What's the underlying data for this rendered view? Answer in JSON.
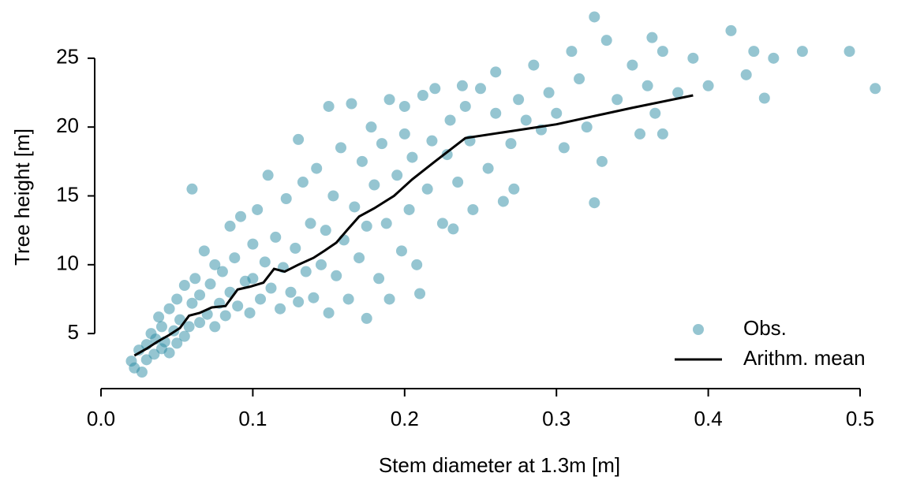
{
  "chart_data": {
    "type": "scatter",
    "xlabel": "Stem diameter at 1.3m [m]",
    "ylabel": "Tree height [m]",
    "xlim": [
      0,
      0.5
    ],
    "ylim": [
      1,
      29
    ],
    "xticks": [
      {
        "value": 0,
        "label": "0.0"
      },
      0.1,
      0.2,
      0.3,
      0.4,
      0.5
    ],
    "yticks": [
      5,
      10,
      15,
      20,
      25
    ],
    "legend": "lower right",
    "series": [
      {
        "name": "Obs.",
        "type": "scatter",
        "color": "#2b8ba3",
        "x": [
          0.02,
          0.022,
          0.025,
          0.027,
          0.03,
          0.03,
          0.033,
          0.035,
          0.036,
          0.038,
          0.04,
          0.04,
          0.042,
          0.045,
          0.045,
          0.048,
          0.05,
          0.05,
          0.052,
          0.055,
          0.055,
          0.058,
          0.06,
          0.06,
          0.062,
          0.065,
          0.065,
          0.068,
          0.07,
          0.072,
          0.075,
          0.075,
          0.078,
          0.08,
          0.082,
          0.085,
          0.085,
          0.088,
          0.09,
          0.092,
          0.095,
          0.098,
          0.1,
          0.1,
          0.103,
          0.105,
          0.108,
          0.11,
          0.112,
          0.115,
          0.118,
          0.12,
          0.122,
          0.125,
          0.128,
          0.13,
          0.13,
          0.133,
          0.135,
          0.138,
          0.14,
          0.142,
          0.145,
          0.148,
          0.15,
          0.15,
          0.153,
          0.155,
          0.158,
          0.16,
          0.163,
          0.165,
          0.167,
          0.17,
          0.172,
          0.175,
          0.175,
          0.178,
          0.18,
          0.183,
          0.185,
          0.188,
          0.19,
          0.19,
          0.195,
          0.198,
          0.2,
          0.2,
          0.203,
          0.205,
          0.208,
          0.21,
          0.212,
          0.215,
          0.218,
          0.22,
          0.225,
          0.228,
          0.23,
          0.232,
          0.235,
          0.238,
          0.24,
          0.243,
          0.245,
          0.25,
          0.255,
          0.26,
          0.26,
          0.265,
          0.27,
          0.272,
          0.275,
          0.28,
          0.285,
          0.29,
          0.295,
          0.3,
          0.305,
          0.31,
          0.315,
          0.32,
          0.325,
          0.325,
          0.33,
          0.333,
          0.34,
          0.35,
          0.355,
          0.36,
          0.363,
          0.365,
          0.37,
          0.37,
          0.38,
          0.39,
          0.4,
          0.415,
          0.425,
          0.43,
          0.437,
          0.443,
          0.462,
          0.493,
          0.51
        ],
        "y": [
          3.0,
          2.5,
          3.8,
          2.2,
          4.2,
          3.1,
          5.0,
          3.5,
          4.6,
          6.2,
          3.9,
          5.5,
          4.4,
          6.8,
          3.6,
          5.2,
          7.5,
          4.3,
          6.0,
          8.5,
          4.8,
          5.5,
          7.2,
          15.5,
          9.0,
          5.8,
          7.8,
          11.0,
          6.4,
          8.6,
          5.5,
          10.0,
          7.2,
          9.5,
          6.3,
          12.8,
          8.0,
          10.5,
          7.0,
          13.5,
          8.8,
          6.5,
          11.5,
          9.0,
          14.0,
          7.5,
          10.2,
          16.5,
          8.3,
          12.0,
          6.8,
          9.8,
          14.8,
          8.0,
          11.2,
          19.1,
          7.3,
          16.0,
          9.5,
          13.0,
          7.6,
          17.0,
          10.0,
          12.5,
          21.5,
          6.5,
          15.0,
          9.2,
          18.5,
          11.8,
          7.5,
          21.7,
          14.2,
          10.5,
          17.5,
          6.1,
          12.8,
          20.0,
          15.8,
          9.0,
          18.8,
          13.0,
          22.0,
          7.5,
          16.5,
          11.0,
          19.5,
          21.5,
          14.0,
          17.8,
          10.0,
          7.9,
          22.3,
          15.5,
          19.0,
          22.8,
          13.0,
          18.0,
          20.5,
          12.6,
          16.0,
          23.0,
          21.5,
          19.0,
          14.0,
          22.8,
          17.0,
          24.0,
          21.0,
          14.6,
          18.8,
          15.5,
          22.0,
          20.5,
          24.5,
          19.8,
          22.5,
          21.0,
          18.5,
          25.5,
          23.5,
          20.0,
          28.0,
          14.5,
          17.5,
          26.3,
          22.0,
          24.5,
          19.5,
          23.0,
          26.5,
          21.0,
          25.5,
          19.5,
          22.5,
          25.0,
          23.0,
          27.0,
          23.8,
          25.5,
          22.1,
          25.0,
          25.5,
          25.5,
          22.8
        ]
      },
      {
        "name": "Arithm. mean",
        "type": "line",
        "color": "#000000",
        "x": [
          0.022,
          0.03,
          0.037,
          0.045,
          0.052,
          0.058,
          0.065,
          0.073,
          0.082,
          0.09,
          0.098,
          0.107,
          0.114,
          0.121,
          0.13,
          0.14,
          0.147,
          0.155,
          0.162,
          0.17,
          0.18,
          0.193,
          0.205,
          0.22,
          0.24,
          0.3,
          0.35,
          0.39
        ],
        "y": [
          3.4,
          3.9,
          4.4,
          4.9,
          5.4,
          6.3,
          6.5,
          6.9,
          7.0,
          8.2,
          8.4,
          8.7,
          9.7,
          9.5,
          10.0,
          10.5,
          11.0,
          11.6,
          12.5,
          13.5,
          14.1,
          15.0,
          16.2,
          17.5,
          19.2,
          20.2,
          21.4,
          22.3
        ]
      }
    ]
  }
}
